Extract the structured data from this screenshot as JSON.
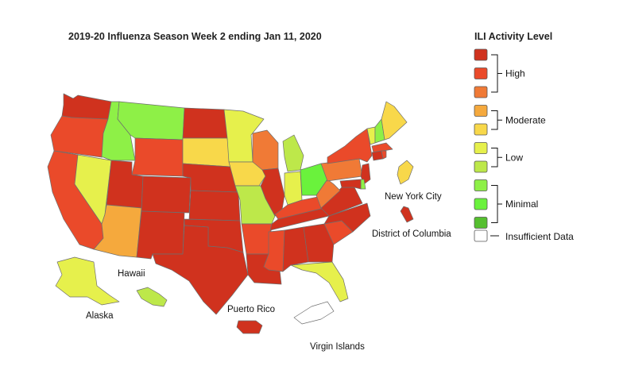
{
  "title": "2019-20 Influenza Season Week 2 ending Jan 11, 2020",
  "legend": {
    "title": "ILI Activity Level",
    "levels": [
      {
        "level": 10,
        "color": "#d0321e"
      },
      {
        "level": 9,
        "color": "#ea4a2a"
      },
      {
        "level": 8,
        "color": "#f07a36"
      },
      {
        "level": 7,
        "color": "#f5a93d"
      },
      {
        "level": 6,
        "color": "#f8d84a"
      },
      {
        "level": 5,
        "color": "#e6f04c"
      },
      {
        "level": 4,
        "color": "#bde84a"
      },
      {
        "level": 3,
        "color": "#8ef047"
      },
      {
        "level": 2,
        "color": "#6af23c"
      },
      {
        "level": 1,
        "color": "#55bf2f"
      }
    ],
    "groups": [
      {
        "label": "High",
        "levels": [
          10,
          9,
          8
        ]
      },
      {
        "label": "Moderate",
        "levels": [
          7,
          6
        ]
      },
      {
        "label": "Low",
        "levels": [
          5,
          4
        ]
      },
      {
        "label": "Minimal",
        "levels": [
          3,
          2,
          1
        ]
      }
    ],
    "insufficient": {
      "label": "Insufficient Data",
      "color": "#ffffff"
    }
  },
  "labels": {
    "nyc": "New York City",
    "dc": "District of Columbia",
    "hawaii": "Hawaii",
    "alaska": "Alaska",
    "puerto_rico": "Puerto Rico",
    "virgin_islands": "Virgin Islands"
  },
  "states": {
    "WA": 10,
    "OR": 9,
    "CA": 9,
    "NV": 5,
    "ID": 3,
    "MT": 3,
    "WY": 9,
    "UT": 10,
    "AZ": 7,
    "CO": 10,
    "NM": 10,
    "ND": 10,
    "SD": 6,
    "NE": 10,
    "KS": 10,
    "OK": 10,
    "TX": 10,
    "MN": 5,
    "IA": 6,
    "MO": 4,
    "AR": 9,
    "LA": 10,
    "WI": 8,
    "IL": 10,
    "MI": 4,
    "IN": 5,
    "OH": 2,
    "KY": 9,
    "TN": 10,
    "MS": 9,
    "AL": 10,
    "GA": 10,
    "FL": 5,
    "SC": 9,
    "NC": 10,
    "VA": 10,
    "WV": 8,
    "PA": 8,
    "NY": 9,
    "VT": 5,
    "NH": 3,
    "ME": 6,
    "MA": 9,
    "CT": 10,
    "RI": 9,
    "NJ": 10,
    "DE": 3,
    "MD": 10,
    "NYC": 6,
    "DC": 10,
    "AK": 5,
    "HI": 4,
    "PR": 10,
    "VI": 0
  }
}
